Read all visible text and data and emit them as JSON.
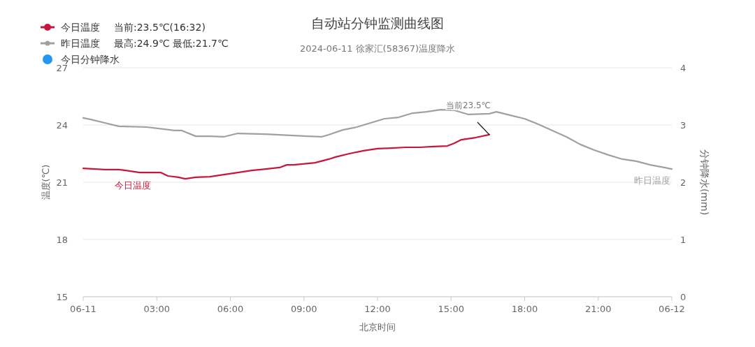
{
  "chart_data": {
    "type": "line",
    "title": "自动站分钟监测曲线图",
    "subtitle": "2024-06-11 徐家汇(58367)温度降水",
    "xlabel": "北京时间",
    "ylabel": "温度(℃)",
    "y2label": "分钟降水(mm)",
    "xlim": [
      0,
      24
    ],
    "xticks": [
      {
        "value": 0,
        "label": "06-11"
      },
      {
        "value": 3,
        "label": "03:00"
      },
      {
        "value": 6,
        "label": "06:00"
      },
      {
        "value": 9,
        "label": "09:00"
      },
      {
        "value": 12,
        "label": "12:00"
      },
      {
        "value": 15,
        "label": "15:00"
      },
      {
        "value": 18,
        "label": "18:00"
      },
      {
        "value": 21,
        "label": "21:00"
      },
      {
        "value": 24,
        "label": "06-12"
      }
    ],
    "ylim": [
      15,
      27
    ],
    "yticks": [
      15,
      18,
      21,
      24,
      27
    ],
    "y2lim": [
      0,
      4
    ],
    "y2ticks": [
      0,
      1,
      2,
      3,
      4
    ],
    "grid": "y",
    "legend": "top left",
    "series": [
      {
        "name": "今日温度",
        "color": "#c8173c",
        "x": [
          0,
          0.88,
          1.45,
          1.74,
          2.31,
          3.16,
          3.45,
          3.88,
          4.16,
          4.59,
          5.16,
          5.73,
          6.3,
          6.87,
          7.44,
          8.01,
          8.3,
          8.58,
          9.45,
          10.02,
          10.29,
          10.86,
          11.43,
          12.0,
          12.57,
          13.14,
          13.71,
          14.29,
          14.85,
          15.14,
          15.42,
          16.0,
          16.56
        ],
        "values": [
          21.73,
          21.66,
          21.66,
          21.62,
          21.51,
          21.51,
          21.33,
          21.26,
          21.18,
          21.26,
          21.29,
          21.4,
          21.51,
          21.62,
          21.69,
          21.77,
          21.91,
          21.91,
          22.02,
          22.21,
          22.32,
          22.5,
          22.65,
          22.76,
          22.79,
          22.83,
          22.83,
          22.87,
          22.9,
          23.05,
          23.23,
          23.34,
          23.49
        ]
      },
      {
        "name": "昨日温度",
        "color": "#a0a0a0",
        "x": [
          0,
          0.31,
          0.88,
          1.45,
          2.59,
          3.73,
          4.02,
          4.59,
          5.16,
          5.73,
          6.3,
          7.44,
          8.58,
          9.15,
          9.72,
          10.01,
          10.58,
          11.15,
          11.72,
          12.29,
          12.86,
          13.43,
          14.0,
          14.57,
          15.14,
          15.71,
          16.56,
          16.85,
          17.42,
          17.99,
          18.56,
          19.13,
          19.7,
          20.27,
          20.84,
          21.41,
          21.98,
          22.55,
          23.12,
          23.69,
          24
        ],
        "values": [
          24.37,
          24.29,
          24.11,
          23.93,
          23.89,
          23.71,
          23.71,
          23.41,
          23.41,
          23.38,
          23.56,
          23.52,
          23.45,
          23.41,
          23.38,
          23.49,
          23.74,
          23.89,
          24.11,
          24.33,
          24.4,
          24.62,
          24.69,
          24.8,
          24.77,
          24.55,
          24.59,
          24.69,
          24.51,
          24.33,
          24.04,
          23.71,
          23.38,
          22.98,
          22.68,
          22.43,
          22.21,
          22.1,
          21.91,
          21.77,
          21.69
        ]
      },
      {
        "name": "今日分钟降水",
        "color": "#2196f3",
        "type": "bar"
      }
    ],
    "annotations": [
      "当前:23.5℃(16:32)",
      "最高:24.9℃ 最低:21.7℃",
      {
        "text": "当前23.5℃",
        "x": 16.56,
        "y": 23.49
      }
    ]
  }
}
